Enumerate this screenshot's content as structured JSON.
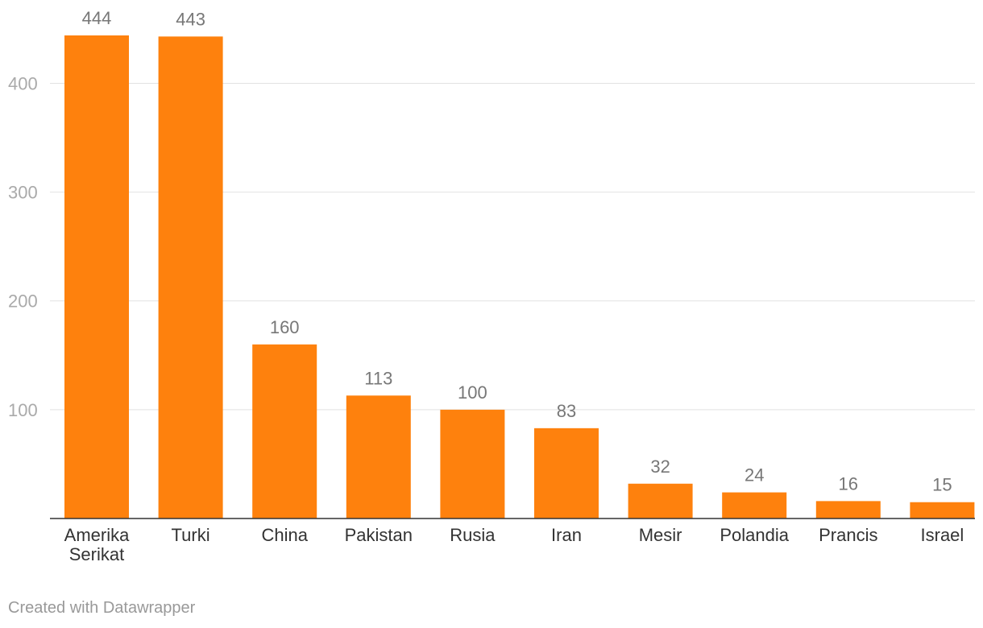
{
  "chart_data": {
    "type": "bar",
    "categories": [
      [
        "Amerika",
        "Serikat"
      ],
      [
        "Turki"
      ],
      [
        "China"
      ],
      [
        "Pakistan"
      ],
      [
        "Rusia"
      ],
      [
        "Iran"
      ],
      [
        "Mesir"
      ],
      [
        "Polandia"
      ],
      [
        "Prancis"
      ],
      [
        "Israel"
      ]
    ],
    "values": [
      444,
      443,
      160,
      113,
      100,
      83,
      32,
      24,
      16,
      15
    ],
    "data_labels": [
      "444",
      "443",
      "160",
      "113",
      "100",
      "83",
      "32",
      "24",
      "16",
      "15"
    ],
    "yticks": [
      100,
      200,
      300,
      400
    ],
    "ylim": [
      0,
      444
    ],
    "grid": true,
    "bar_color": "#fe810d"
  },
  "footer": {
    "credit": "Created with Datawrapper"
  }
}
